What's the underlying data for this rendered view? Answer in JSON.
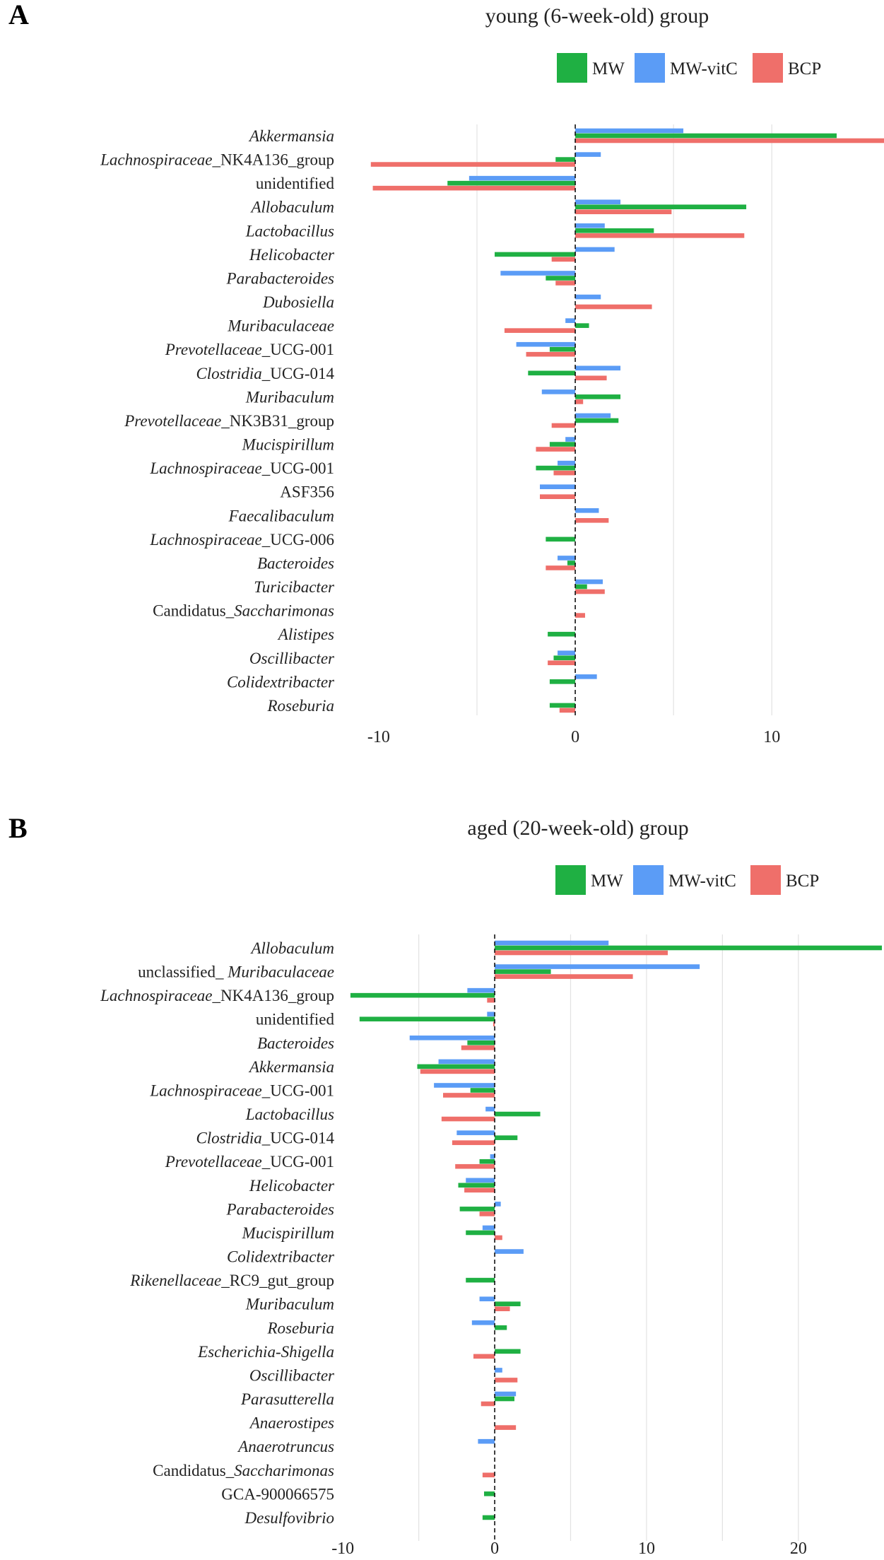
{
  "colors": {
    "MW": "#1fb043",
    "MW-vitC": "#5b9cf6",
    "BCP": "#ef6f6a"
  },
  "chart_data": [
    {
      "panel_label": "A",
      "type": "bar",
      "orientation": "horizontal",
      "title": "young (6-week-old) group",
      "legend": [
        "MW",
        "MW-vitC",
        "BCP"
      ],
      "legend_position": "top-right",
      "xlim": [
        -10.5,
        15.6
      ],
      "xticks": [
        "-10",
        "0",
        "10"
      ],
      "grid": true,
      "categories": [
        {
          "pre": "",
          "it": "Akkermansia",
          "post": ""
        },
        {
          "pre": "",
          "it": "Lachnospiraceae",
          "post": "_NK4A136_group"
        },
        {
          "pre": "unidentified",
          "it": "",
          "post": ""
        },
        {
          "pre": "",
          "it": "Allobaculum",
          "post": ""
        },
        {
          "pre": "",
          "it": "Lactobacillus",
          "post": ""
        },
        {
          "pre": "",
          "it": "Helicobacter",
          "post": ""
        },
        {
          "pre": "",
          "it": "Parabacteroides",
          "post": ""
        },
        {
          "pre": "",
          "it": "Dubosiella",
          "post": ""
        },
        {
          "pre": "",
          "it": "Muribaculaceae",
          "post": ""
        },
        {
          "pre": "",
          "it": "Prevotellaceae",
          "post": "_UCG-001"
        },
        {
          "pre": "",
          "it": "Clostridia",
          "post": "_UCG-014"
        },
        {
          "pre": "",
          "it": "Muribaculum",
          "post": ""
        },
        {
          "pre": "",
          "it": "Prevotellaceae",
          "post": "_NK3B31_group"
        },
        {
          "pre": "",
          "it": "Mucispirillum",
          "post": ""
        },
        {
          "pre": "",
          "it": "Lachnospiraceae",
          "post": "_UCG-001"
        },
        {
          "pre": "ASF356",
          "it": "",
          "post": ""
        },
        {
          "pre": "",
          "it": "Faecalibaculum",
          "post": ""
        },
        {
          "pre": "",
          "it": "Lachnospiraceae",
          "post": "_UCG-006"
        },
        {
          "pre": "",
          "it": "Bacteroides",
          "post": ""
        },
        {
          "pre": "",
          "it": "Turicibacter",
          "post": ""
        },
        {
          "pre": "Candidatus_",
          "it": "Saccharimonas",
          "post": ""
        },
        {
          "pre": "",
          "it": "Alistipes",
          "post": ""
        },
        {
          "pre": "",
          "it": "Oscillibacter",
          "post": ""
        },
        {
          "pre": "",
          "it": "Colidextribacter",
          "post": ""
        },
        {
          "pre": "",
          "it": "Roseburia",
          "post": ""
        }
      ],
      "series": [
        {
          "name": "MW-vitC",
          "values": [
            5.5,
            1.3,
            -5.4,
            2.3,
            1.5,
            2.0,
            -3.8,
            1.3,
            -0.5,
            -3.0,
            2.3,
            -1.7,
            1.8,
            -0.5,
            -0.9,
            -1.8,
            1.2,
            0,
            -0.9,
            1.4,
            0,
            0,
            -0.9,
            1.1,
            0
          ]
        },
        {
          "name": "MW",
          "values": [
            13.3,
            -1.0,
            -6.5,
            8.7,
            4.0,
            -4.1,
            -1.5,
            0,
            0.7,
            -1.3,
            -2.4,
            2.3,
            2.2,
            -1.3,
            -2.0,
            0,
            0,
            -1.5,
            -0.4,
            0.6,
            0,
            -1.4,
            -1.1,
            -1.3,
            -1.3
          ]
        },
        {
          "name": "BCP",
          "values": [
            15.8,
            -10.4,
            -10.3,
            4.9,
            8.6,
            -1.2,
            -1.0,
            3.9,
            -3.6,
            -2.5,
            1.6,
            0.4,
            -1.2,
            -2.0,
            -1.1,
            -1.8,
            1.7,
            0,
            -1.5,
            1.5,
            0.5,
            0,
            -1.4,
            0,
            -0.8
          ]
        }
      ]
    },
    {
      "panel_label": "B",
      "type": "bar",
      "orientation": "horizontal",
      "title": "aged (20-week-old) group",
      "legend": [
        "MW",
        "MW-vitC",
        "BCP"
      ],
      "legend_position": "top-right",
      "xlim": [
        -10.8,
        25.5
      ],
      "xticks": [
        "-10",
        "0",
        "10",
        "20"
      ],
      "grid": true,
      "categories": [
        {
          "pre": "",
          "it": "Allobaculum",
          "post": ""
        },
        {
          "pre": "unclassified_ ",
          "it": "Muribaculaceae",
          "post": ""
        },
        {
          "pre": "",
          "it": "Lachnospiraceae",
          "post": "_NK4A136_group"
        },
        {
          "pre": "unidentified",
          "it": "",
          "post": ""
        },
        {
          "pre": "",
          "it": "Bacteroides",
          "post": ""
        },
        {
          "pre": "",
          "it": "Akkermansia",
          "post": ""
        },
        {
          "pre": "",
          "it": "Lachnospiraceae",
          "post": "_UCG-001"
        },
        {
          "pre": "",
          "it": "Lactobacillus",
          "post": ""
        },
        {
          "pre": "",
          "it": "Clostridia",
          "post": "_UCG-014"
        },
        {
          "pre": "",
          "it": "Prevotellaceae",
          "post": "_UCG-001"
        },
        {
          "pre": "",
          "it": "Helicobacter",
          "post": ""
        },
        {
          "pre": "",
          "it": "Parabacteroides",
          "post": ""
        },
        {
          "pre": "",
          "it": "Mucispirillum",
          "post": ""
        },
        {
          "pre": "",
          "it": "Colidextribacter",
          "post": ""
        },
        {
          "pre": "",
          "it": "Rikenellaceae",
          "post": "_RC9_gut_group"
        },
        {
          "pre": "",
          "it": "Muribaculum",
          "post": ""
        },
        {
          "pre": "",
          "it": "Roseburia",
          "post": ""
        },
        {
          "pre": "",
          "it": "Escherichia-Shigella",
          "post": ""
        },
        {
          "pre": "",
          "it": "Oscillibacter",
          "post": ""
        },
        {
          "pre": "",
          "it": "Parasutterella",
          "post": ""
        },
        {
          "pre": "",
          "it": "Anaerostipes",
          "post": ""
        },
        {
          "pre": "",
          "it": "Anaerotruncus",
          "post": ""
        },
        {
          "pre": "Candidatus_",
          "it": "Saccharimonas",
          "post": ""
        },
        {
          "pre": "GCA-900066575",
          "it": "",
          "post": ""
        },
        {
          "pre": "",
          "it": "Desulfovibrio",
          "post": ""
        }
      ],
      "series": [
        {
          "name": "MW-vitC",
          "values": [
            7.5,
            13.5,
            -1.8,
            -0.5,
            -5.6,
            -3.7,
            -4.0,
            -0.6,
            -2.5,
            -0.3,
            -1.9,
            0.4,
            -0.8,
            1.9,
            0,
            -1.0,
            -1.5,
            0,
            0.5,
            1.4,
            0,
            -1.1,
            0,
            0,
            0
          ]
        },
        {
          "name": "MW",
          "values": [
            25.5,
            3.7,
            -9.5,
            -8.9,
            -1.8,
            -5.1,
            -1.6,
            3.0,
            1.5,
            -1.0,
            -2.4,
            -2.3,
            -1.9,
            0,
            -1.9,
            1.7,
            0.8,
            1.7,
            0,
            1.3,
            0,
            0,
            0,
            -0.7,
            -0.8
          ]
        },
        {
          "name": "BCP",
          "values": [
            11.4,
            9.1,
            -0.5,
            -0.1,
            -2.2,
            -4.9,
            -3.4,
            -3.5,
            -2.8,
            -2.6,
            -2.0,
            -1.0,
            0.5,
            0,
            0,
            1.0,
            0,
            -1.4,
            1.5,
            -0.9,
            1.4,
            0,
            -0.8,
            0,
            0
          ]
        }
      ]
    }
  ]
}
